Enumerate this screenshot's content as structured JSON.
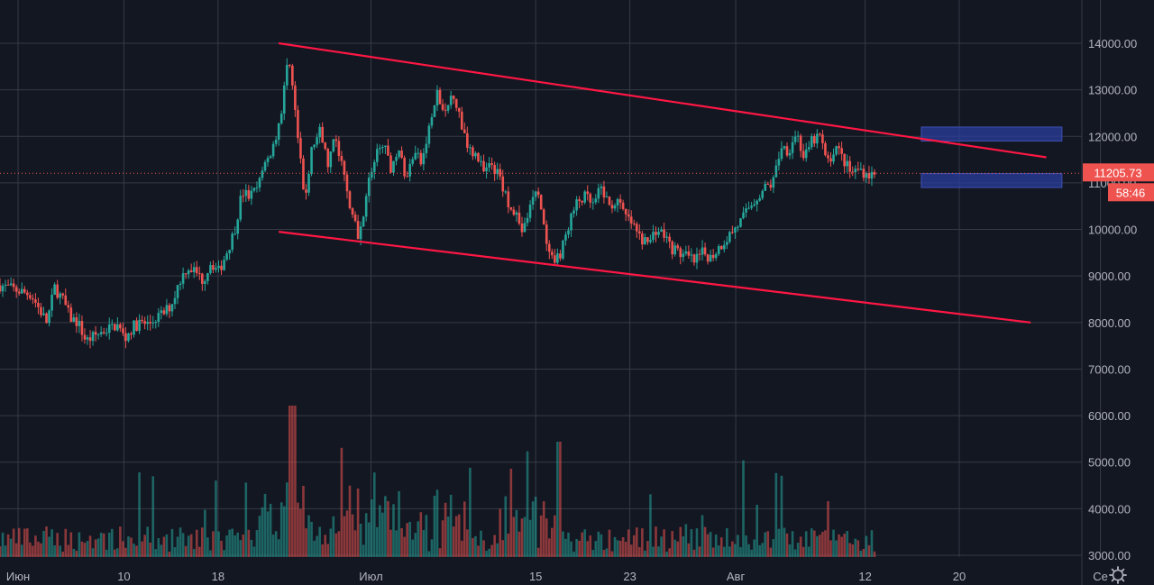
{
  "chart_data": {
    "type": "candlestick",
    "y_axis": {
      "min": 3000,
      "max": 15000,
      "ticks": [
        "14000.00",
        "13000.00",
        "12000.00",
        "11000.00",
        "10000.00",
        "9000.00",
        "8000.00",
        "7000.00",
        "6000.00",
        "5000.00",
        "4000.00",
        "3000.00"
      ],
      "tick_values": [
        14000,
        13000,
        12000,
        11000,
        10000,
        9000,
        8000,
        7000,
        6000,
        5000,
        4000,
        3000
      ]
    },
    "x_axis": {
      "ticks": [
        "Июн",
        "10",
        "18",
        "Июл",
        "15",
        "23",
        "Авг",
        "12",
        "20",
        "Се"
      ],
      "tick_days": [
        0,
        9,
        17,
        30,
        44,
        52,
        61,
        72,
        80,
        92
      ]
    },
    "grid": true,
    "current_price": {
      "value": 11205.73,
      "label": "11205.73",
      "countdown": "58:46",
      "color": "#ef5350"
    },
    "colors": {
      "up": "#26a69a",
      "down": "#ef5350",
      "trendline": "#ff1744",
      "zone": "#2a3d9e",
      "background": "#131722"
    },
    "price_path": [
      [
        0,
        8800
      ],
      [
        2,
        8700
      ],
      [
        4,
        8600
      ],
      [
        5,
        8300
      ],
      [
        6,
        8000
      ],
      [
        7,
        8750
      ],
      [
        8,
        8500
      ],
      [
        9,
        8100
      ],
      [
        10,
        8000
      ],
      [
        11,
        7600
      ],
      [
        12,
        7700
      ],
      [
        13,
        7800
      ],
      [
        15,
        7950
      ],
      [
        16,
        7650
      ],
      [
        17,
        7900
      ],
      [
        18,
        8000
      ],
      [
        19,
        7950
      ],
      [
        20,
        8100
      ],
      [
        21,
        8200
      ],
      [
        22,
        8400
      ],
      [
        23,
        8900
      ],
      [
        24,
        9200
      ],
      [
        25,
        9100
      ],
      [
        26,
        8900
      ],
      [
        27,
        9300
      ],
      [
        28,
        9100
      ],
      [
        29,
        9500
      ],
      [
        30,
        9950
      ],
      [
        31,
        10800
      ],
      [
        32,
        10700
      ],
      [
        33,
        10900
      ],
      [
        34,
        11400
      ],
      [
        35,
        11800
      ],
      [
        36,
        12500
      ],
      [
        37,
        13800
      ],
      [
        38,
        12200
      ],
      [
        39,
        10600
      ],
      [
        40,
        11800
      ],
      [
        41,
        12100
      ],
      [
        42,
        11400
      ],
      [
        43,
        12000
      ],
      [
        44,
        11200
      ],
      [
        45,
        10400
      ],
      [
        46,
        9800
      ],
      [
        47,
        10900
      ],
      [
        48,
        11500
      ],
      [
        49,
        11900
      ],
      [
        50,
        11300
      ],
      [
        51,
        11800
      ],
      [
        52,
        11000
      ],
      [
        53,
        11700
      ],
      [
        54,
        11400
      ],
      [
        55,
        12200
      ],
      [
        56,
        12900
      ],
      [
        57,
        12400
      ],
      [
        58,
        13000
      ],
      [
        59,
        12300
      ],
      [
        60,
        11800
      ],
      [
        61,
        11600
      ],
      [
        62,
        11200
      ],
      [
        63,
        11400
      ],
      [
        64,
        11100
      ],
      [
        65,
        10600
      ],
      [
        66,
        10400
      ],
      [
        67,
        9900
      ],
      [
        68,
        10600
      ],
      [
        69,
        10800
      ],
      [
        70,
        9600
      ],
      [
        71,
        9200
      ],
      [
        72,
        9600
      ],
      [
        73,
        10200
      ],
      [
        74,
        10600
      ],
      [
        75,
        10700
      ],
      [
        76,
        10500
      ],
      [
        77,
        10900
      ],
      [
        78,
        10500
      ],
      [
        79,
        10600
      ],
      [
        80,
        10300
      ],
      [
        81,
        10100
      ],
      [
        82,
        9800
      ],
      [
        83,
        9700
      ],
      [
        84,
        10000
      ],
      [
        85,
        9900
      ],
      [
        86,
        9600
      ],
      [
        87,
        9500
      ],
      [
        88,
        9400
      ],
      [
        89,
        9300
      ],
      [
        90,
        9500
      ],
      [
        91,
        9400
      ],
      [
        92,
        9600
      ],
      [
        93,
        9800
      ],
      [
        94,
        10000
      ],
      [
        95,
        10200
      ],
      [
        96,
        10500
      ],
      [
        97,
        10700
      ],
      [
        98,
        10900
      ],
      [
        99,
        11000
      ],
      [
        100,
        11800
      ],
      [
        101,
        11700
      ],
      [
        102,
        12100
      ],
      [
        103,
        11500
      ],
      [
        104,
        11900
      ],
      [
        105,
        12000
      ],
      [
        106,
        11400
      ],
      [
        107,
        11800
      ],
      [
        108,
        11500
      ],
      [
        109,
        11200
      ],
      [
        110,
        11300
      ],
      [
        111,
        11200
      ],
      [
        112,
        11150
      ]
    ],
    "trendlines": [
      {
        "from": [
          10,
          14000
        ],
        "to": [
          134,
          11550
        ]
      },
      {
        "from": [
          10,
          9950
        ],
        "to": [
          132,
          8000
        ]
      }
    ],
    "zones": [
      {
        "y0": 11900,
        "y1": 12200,
        "x0": 118,
        "x1": 136
      },
      {
        "y0": 10900,
        "y1": 11200,
        "x0": 118,
        "x1": 136
      }
    ]
  }
}
